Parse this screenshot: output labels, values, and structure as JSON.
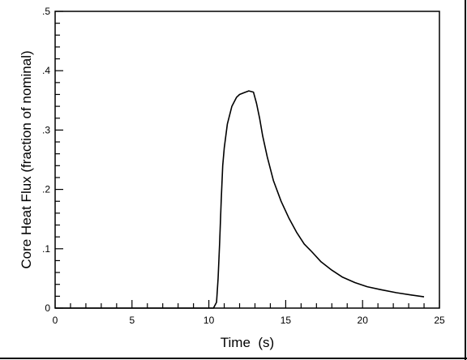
{
  "chart_data": {
    "type": "line",
    "title": "",
    "xlabel": "Time  (s)",
    "ylabel": "Core Heat Flux (fraction of nominal)",
    "xlim": [
      0,
      25
    ],
    "ylim": [
      0,
      0.5
    ],
    "x_ticks": [
      0,
      5,
      10,
      15,
      20,
      25
    ],
    "x_tick_labels": [
      "0",
      "5",
      "10",
      "15",
      "20",
      "25"
    ],
    "x_minor_step": 1,
    "y_ticks": [
      0,
      0.1,
      0.2,
      0.3,
      0.4,
      0.5
    ],
    "y_tick_labels": [
      "0",
      ".1",
      ".2",
      ".3",
      ".4",
      ".5"
    ],
    "y_minor_step": 0.02,
    "grid": false,
    "legend": "none",
    "line_color": "#000000",
    "series": [
      {
        "x": [
          0,
          10.3,
          10.5,
          10.6,
          10.7,
          10.8,
          10.9,
          11.0,
          11.2,
          11.5,
          11.8,
          12.0,
          12.3,
          12.6,
          12.9,
          13.1,
          13.3,
          13.5,
          13.8,
          14.2,
          14.7,
          15.2,
          15.7,
          16.2,
          16.7,
          17.3,
          18.0,
          18.7,
          19.5,
          20.3,
          21.2,
          22.2,
          23.2,
          24.0
        ],
        "values": [
          0,
          0,
          0.01,
          0.05,
          0.11,
          0.18,
          0.24,
          0.27,
          0.31,
          0.34,
          0.355,
          0.36,
          0.363,
          0.366,
          0.364,
          0.345,
          0.32,
          0.29,
          0.255,
          0.215,
          0.18,
          0.152,
          0.128,
          0.108,
          0.095,
          0.078,
          0.064,
          0.052,
          0.043,
          0.036,
          0.031,
          0.026,
          0.022,
          0.019
        ]
      }
    ]
  }
}
